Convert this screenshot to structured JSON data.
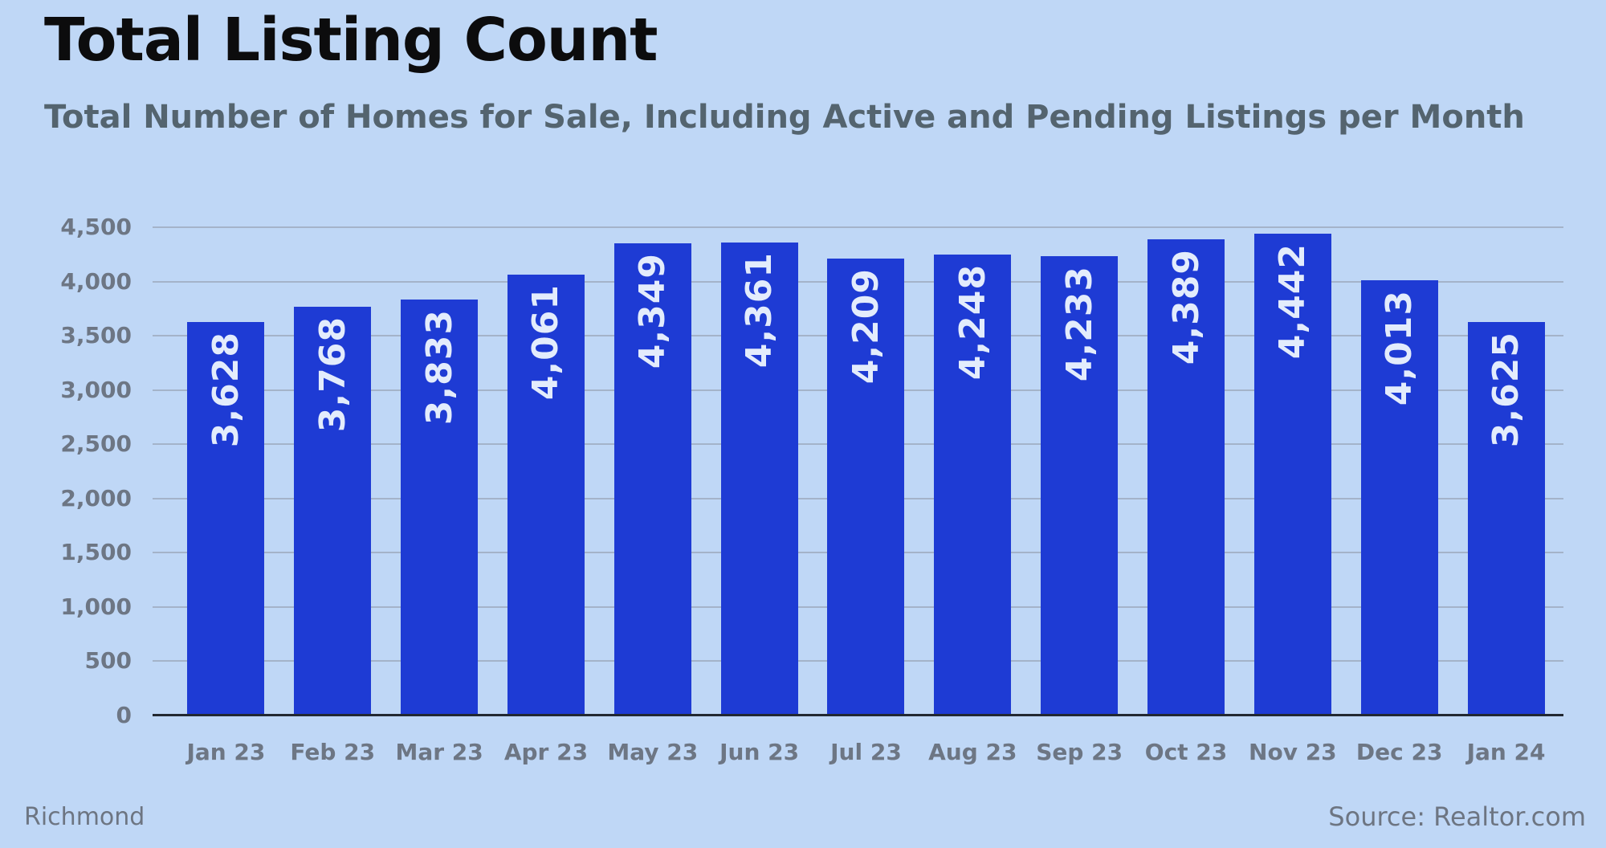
{
  "page": {
    "footer_left": "Richmond",
    "footer_right": "Source: Realtor.com"
  },
  "colors": {
    "background": "#bfd7f6",
    "bar": "#1e3bd4",
    "bar_label": "#e3ecfc",
    "grid": "#a4b3c9",
    "axis": "#222831",
    "tick": "#6d7684",
    "title": "#0c0c0d",
    "subtitle": "#54646f",
    "footer": "#6d7582"
  },
  "chart_data": {
    "type": "bar",
    "title": "Total Listing Count",
    "subtitle": "Total Number of Homes for Sale, Including Active and Pending Listings per Month",
    "categories": [
      "Jan 23",
      "Feb 23",
      "Mar 23",
      "Apr 23",
      "May 23",
      "Jun 23",
      "Jul 23",
      "Aug 23",
      "Sep 23",
      "Oct 23",
      "Nov 23",
      "Dec 23",
      "Jan 24"
    ],
    "values": [
      3628,
      3768,
      3833,
      4061,
      4349,
      4361,
      4209,
      4248,
      4233,
      4389,
      4442,
      4013,
      3625
    ],
    "value_labels": [
      "3,628",
      "3,768",
      "3,833",
      "4,061",
      "4,349",
      "4,361",
      "4,209",
      "4,248",
      "4,233",
      "4,389",
      "4,442",
      "4,013",
      "3,625"
    ],
    "xlabel": "",
    "ylabel": "",
    "ylim": [
      0,
      4500
    ],
    "y_ticks": [
      {
        "value": 0,
        "label": "0"
      },
      {
        "value": 500,
        "label": "500"
      },
      {
        "value": 1000,
        "label": "1,000"
      },
      {
        "value": 1500,
        "label": "1,500"
      },
      {
        "value": 2000,
        "label": "2,000"
      },
      {
        "value": 2500,
        "label": "2,500"
      },
      {
        "value": 3000,
        "label": "3,000"
      },
      {
        "value": 3500,
        "label": "3,500"
      },
      {
        "value": 4000,
        "label": "4,000"
      },
      {
        "value": 4500,
        "label": "4,500"
      }
    ],
    "grid": "horizontal",
    "legend": "none",
    "bar_label_rotation": -90
  }
}
